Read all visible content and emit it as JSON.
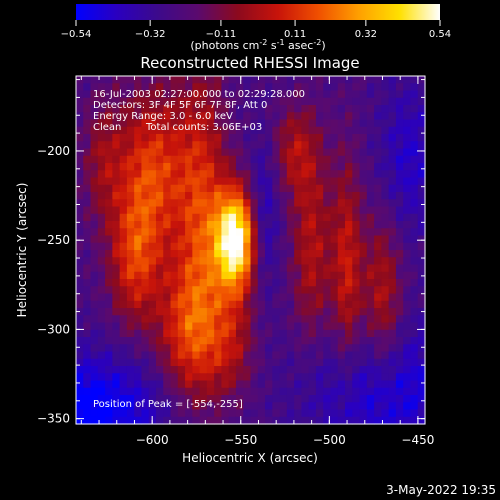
{
  "colorbar": {
    "ticks": [
      "-0.54",
      "-0.32",
      "-0.11",
      "0.11",
      "0.32",
      "0.54"
    ],
    "tick_values": [
      -0.54,
      -0.32,
      -0.11,
      0.11,
      0.32,
      0.54
    ],
    "range": [
      -0.54,
      0.54
    ],
    "units_prefix": "(photons cm",
    "units_exp1": "-2",
    "units_mid": " s",
    "units_exp2": "-1",
    "units_mid2": " asec",
    "units_exp3": "-2",
    "units_suffix": ")",
    "colors": [
      "#0000ff",
      "#2a00c0",
      "#3c0a8c",
      "#5a0a6e",
      "#8c0a1e",
      "#c8140a",
      "#f05000",
      "#ffa000",
      "#ffe000",
      "#ffffff"
    ]
  },
  "info": {
    "time": "16-Jul-2003 02:27:00.000 to 02:29:28.000",
    "detectors": "Detectors: 3F 4F 5F 6F 7F 8F, Att 0",
    "energy": "Energy Range: 3.0 - 6.0 keV",
    "algorithm": "Clean",
    "counts": "Total counts: 3.06E+03",
    "peak": "Position of Peak = [-554,-255]"
  },
  "footer": {
    "date": "3-May-2022 19:35"
  },
  "chart_data": {
    "type": "heatmap",
    "title": "Reconstructed RHESSI Image",
    "xlabel": "Heliocentric X (arcsec)",
    "ylabel": "Heliocentric Y (arcsec)",
    "xlim": [
      -643,
      -446
    ],
    "ylim": [
      -353,
      -158
    ],
    "x_ticks": [
      -600,
      -550,
      -500,
      -450
    ],
    "x_tick_labels": [
      "−600",
      "−550",
      "−500",
      "−450"
    ],
    "y_ticks": [
      -200,
      -250,
      -300,
      -350
    ],
    "y_tick_labels": [
      "−200",
      "−250",
      "−300",
      "−350"
    ],
    "peak": {
      "x": -554,
      "y": -255,
      "value": 0.54
    },
    "background_value": -0.25,
    "sources": [
      {
        "x": -553,
        "y": -250,
        "sx": 8,
        "sy": 20,
        "amp": 0.82
      },
      {
        "x": -572,
        "y": -238,
        "sx": 10,
        "sy": 60,
        "amp": 0.34
      },
      {
        "x": -600,
        "y": -212,
        "sx": 14,
        "sy": 32,
        "amp": 0.38
      },
      {
        "x": -610,
        "y": -262,
        "sx": 10,
        "sy": 26,
        "amp": 0.32
      },
      {
        "x": -582,
        "y": -302,
        "sx": 12,
        "sy": 28,
        "amp": 0.3
      },
      {
        "x": -556,
        "y": -308,
        "sx": 10,
        "sy": 22,
        "amp": 0.24
      },
      {
        "x": -520,
        "y": -200,
        "sx": 9,
        "sy": 18,
        "amp": 0.22
      },
      {
        "x": -510,
        "y": -255,
        "sx": 8,
        "sy": 40,
        "amp": 0.26
      },
      {
        "x": -490,
        "y": -268,
        "sx": 6,
        "sy": 45,
        "amp": 0.3
      },
      {
        "x": -470,
        "y": -285,
        "sx": 8,
        "sy": 35,
        "amp": 0.28
      },
      {
        "x": -628,
        "y": -205,
        "sx": 8,
        "sy": 25,
        "amp": 0.18
      }
    ],
    "sinks": [
      {
        "x": -640,
        "y": -345,
        "sx": 35,
        "sy": 22,
        "amp": 0.32
      },
      {
        "x": -470,
        "y": -335,
        "sx": 30,
        "sy": 28,
        "amp": 0.26
      },
      {
        "x": -537,
        "y": -235,
        "sx": 6,
        "sy": 30,
        "amp": 0.18
      },
      {
        "x": -455,
        "y": -205,
        "sx": 12,
        "sy": 30,
        "amp": 0.18
      }
    ]
  }
}
